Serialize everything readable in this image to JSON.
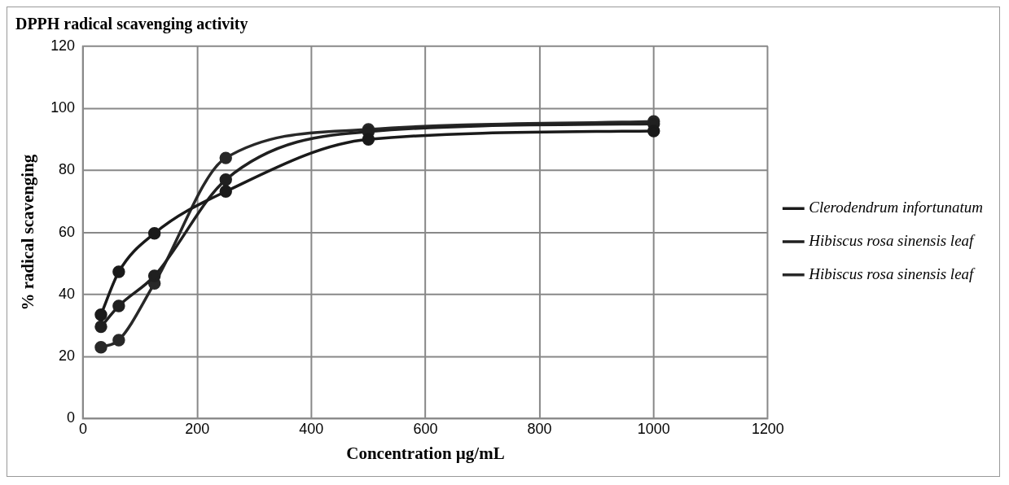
{
  "chart_data": {
    "type": "line",
    "title": "DPPH radical scavenging activity",
    "xlabel": "Concentration µg/mL",
    "ylabel": "% radical scavenging",
    "x": [
      31.25,
      62.5,
      125,
      250,
      500,
      1000
    ],
    "series": [
      {
        "name": "Clerodendrum infortunatum",
        "color": "#1a1a1a",
        "values": [
          33.5,
          47.3,
          59.7,
          73.2,
          90.0,
          92.7
        ]
      },
      {
        "name": "Hibiscus rosa sinensis leaf",
        "color": "#202020",
        "values": [
          29.6,
          36.3,
          46.0,
          77.0,
          92.5,
          95.0
        ]
      },
      {
        "name": "Hibiscus rosa sinensis leaf",
        "color": "#282828",
        "values": [
          23.0,
          25.3,
          43.6,
          84.0,
          93.2,
          95.8
        ]
      }
    ],
    "xlim": [
      0,
      1200
    ],
    "xticks": [
      0,
      200,
      400,
      600,
      800,
      1000,
      1200
    ],
    "ylim": [
      0,
      120
    ],
    "yticks": [
      0,
      20,
      40,
      60,
      80,
      100,
      120
    ],
    "grid": true,
    "legend": "right",
    "marker": "circle",
    "line_style": "solid"
  }
}
